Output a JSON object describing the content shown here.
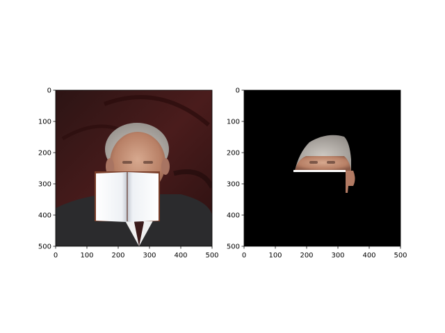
{
  "chart_data": [
    {
      "type": "image",
      "panel": "left",
      "description_tag": "photo-with-book-overlay",
      "xlim": [
        0,
        500
      ],
      "ylim": [
        500,
        0
      ],
      "xticks": [
        "0",
        "100",
        "200",
        "300",
        "400",
        "500"
      ],
      "yticks": [
        "0",
        "100",
        "200",
        "300",
        "400",
        "500"
      ],
      "regions": {
        "background_color": "#3a1a1a",
        "book_overlay": {
          "x_range": [
            125,
            335
          ],
          "y_range": [
            262,
            425
          ]
        },
        "face": {
          "x_range": [
            150,
            330
          ],
          "y_range": [
            120,
            300
          ]
        }
      }
    },
    {
      "type": "image",
      "panel": "right",
      "description_tag": "masked-face-segment",
      "xlim": [
        0,
        500
      ],
      "ylim": [
        500,
        0
      ],
      "xticks": [
        "0",
        "100",
        "200",
        "300",
        "400",
        "500"
      ],
      "yticks": [
        "0",
        "100",
        "200",
        "300",
        "400",
        "500"
      ],
      "regions": {
        "background_color": "#000000",
        "visible_segment": {
          "x_range": [
            160,
            360
          ],
          "y_range": [
            145,
            330
          ]
        }
      }
    }
  ]
}
